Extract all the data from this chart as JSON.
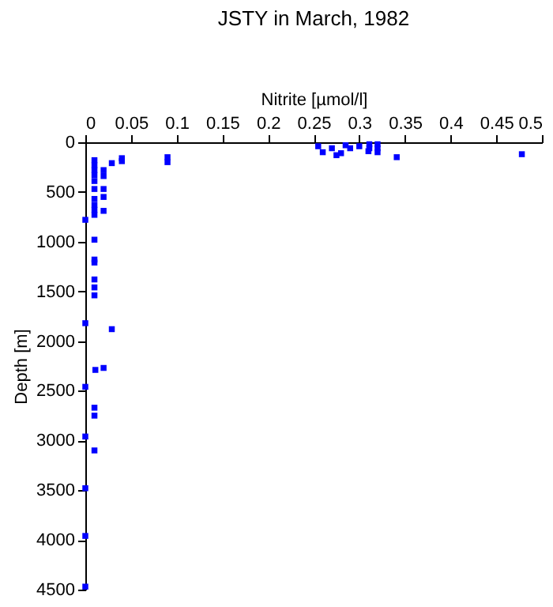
{
  "chart_data": {
    "type": "scatter",
    "title": "JSTY in March, 1982",
    "xlabel": "Nitrite [µmol/l]",
    "ylabel": "Depth [m]",
    "xlim": [
      0,
      0.5
    ],
    "xticks": [
      0,
      0.05,
      0.1,
      0.15,
      0.2,
      0.25,
      0.3,
      0.35,
      0.4,
      0.45,
      0.5
    ],
    "ylim": [
      4500,
      0
    ],
    "yticks": [
      0,
      500,
      1000,
      1500,
      2000,
      2500,
      3000,
      3500,
      4000,
      4500
    ],
    "marker": "square",
    "grid": false,
    "series": [
      {
        "color": "#0000ff",
        "x": [
          0.01,
          0.01,
          0.01,
          0.01,
          0.01,
          0.01,
          0.01,
          0.01,
          0.01,
          0.01,
          0.02,
          0.02,
          0.02,
          0.02,
          0.02,
          0.029,
          0.04,
          0.04,
          0.09,
          0.09,
          0,
          0.01,
          0.01,
          0.01,
          0.01,
          0.01,
          0.01,
          0,
          0.029,
          0.011,
          0.02,
          0,
          0.01,
          0.01,
          0,
          0.01,
          0,
          0,
          0,
          0.311,
          0.311,
          0.32,
          0.32,
          0.32,
          0.341,
          0.478,
          0.255,
          0.26,
          0.27,
          0.275,
          0.28,
          0.285,
          0.29,
          0.3,
          0.31
        ],
        "values": [
          180,
          230,
          280,
          330,
          390,
          470,
          570,
          630,
          680,
          730,
          280,
          340,
          470,
          550,
          690,
          210,
          160,
          190,
          150,
          200,
          780,
          980,
          1180,
          1210,
          1380,
          1460,
          1540,
          1820,
          1880,
          2290,
          2270,
          2460,
          2670,
          2750,
          2960,
          3100,
          3480,
          3960,
          4470,
          20,
          60,
          20,
          60,
          100,
          150,
          120,
          40,
          100,
          60,
          130,
          110,
          30,
          60,
          40,
          90
        ]
      }
    ]
  }
}
